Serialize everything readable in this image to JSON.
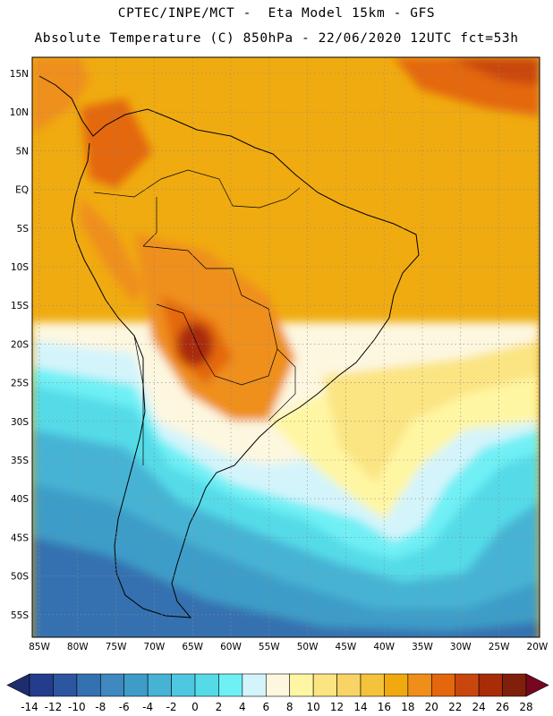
{
  "header": {
    "line1": "CPTEC/INPE/MCT -  Eta Model 15km - GFS",
    "line2": "Absolute Temperature (C) 850hPa - 22/06/2020 12UTC fct=53h"
  },
  "map": {
    "lat_labels": [
      "15N",
      "10N",
      "5N",
      "EQ",
      "5S",
      "10S",
      "15S",
      "20S",
      "25S",
      "30S",
      "35S",
      "40S",
      "45S",
      "50S",
      "55S"
    ],
    "lon_labels": [
      "85W",
      "80W",
      "75W",
      "70W",
      "65W",
      "60W",
      "55W",
      "50W",
      "45W",
      "40W",
      "35W",
      "30W",
      "25W",
      "20W"
    ],
    "grid": "dotted"
  },
  "colorbar": {
    "labels": [
      "-14",
      "-12",
      "-10",
      "-8",
      "-6",
      "-4",
      "-2",
      "0",
      "2",
      "4",
      "6",
      "8",
      "10",
      "12",
      "14",
      "16",
      "18",
      "20",
      "22",
      "24",
      "26",
      "28"
    ],
    "colors": [
      "#243c8c",
      "#2c57a0",
      "#3471b0",
      "#3f88c0",
      "#3e9dc8",
      "#47b3d4",
      "#4ec8e0",
      "#55dbe8",
      "#6ff0f5",
      "#d4f4fb",
      "#fdf7e0",
      "#fff6a3",
      "#fbe482",
      "#f8d466",
      "#f3c33b",
      "#f0a90f",
      "#ef8f1a",
      "#e4670e",
      "#c9470d",
      "#a92c08",
      "#80200a"
    ],
    "under_color": "#1e2d6e",
    "over_color": "#750820"
  }
}
